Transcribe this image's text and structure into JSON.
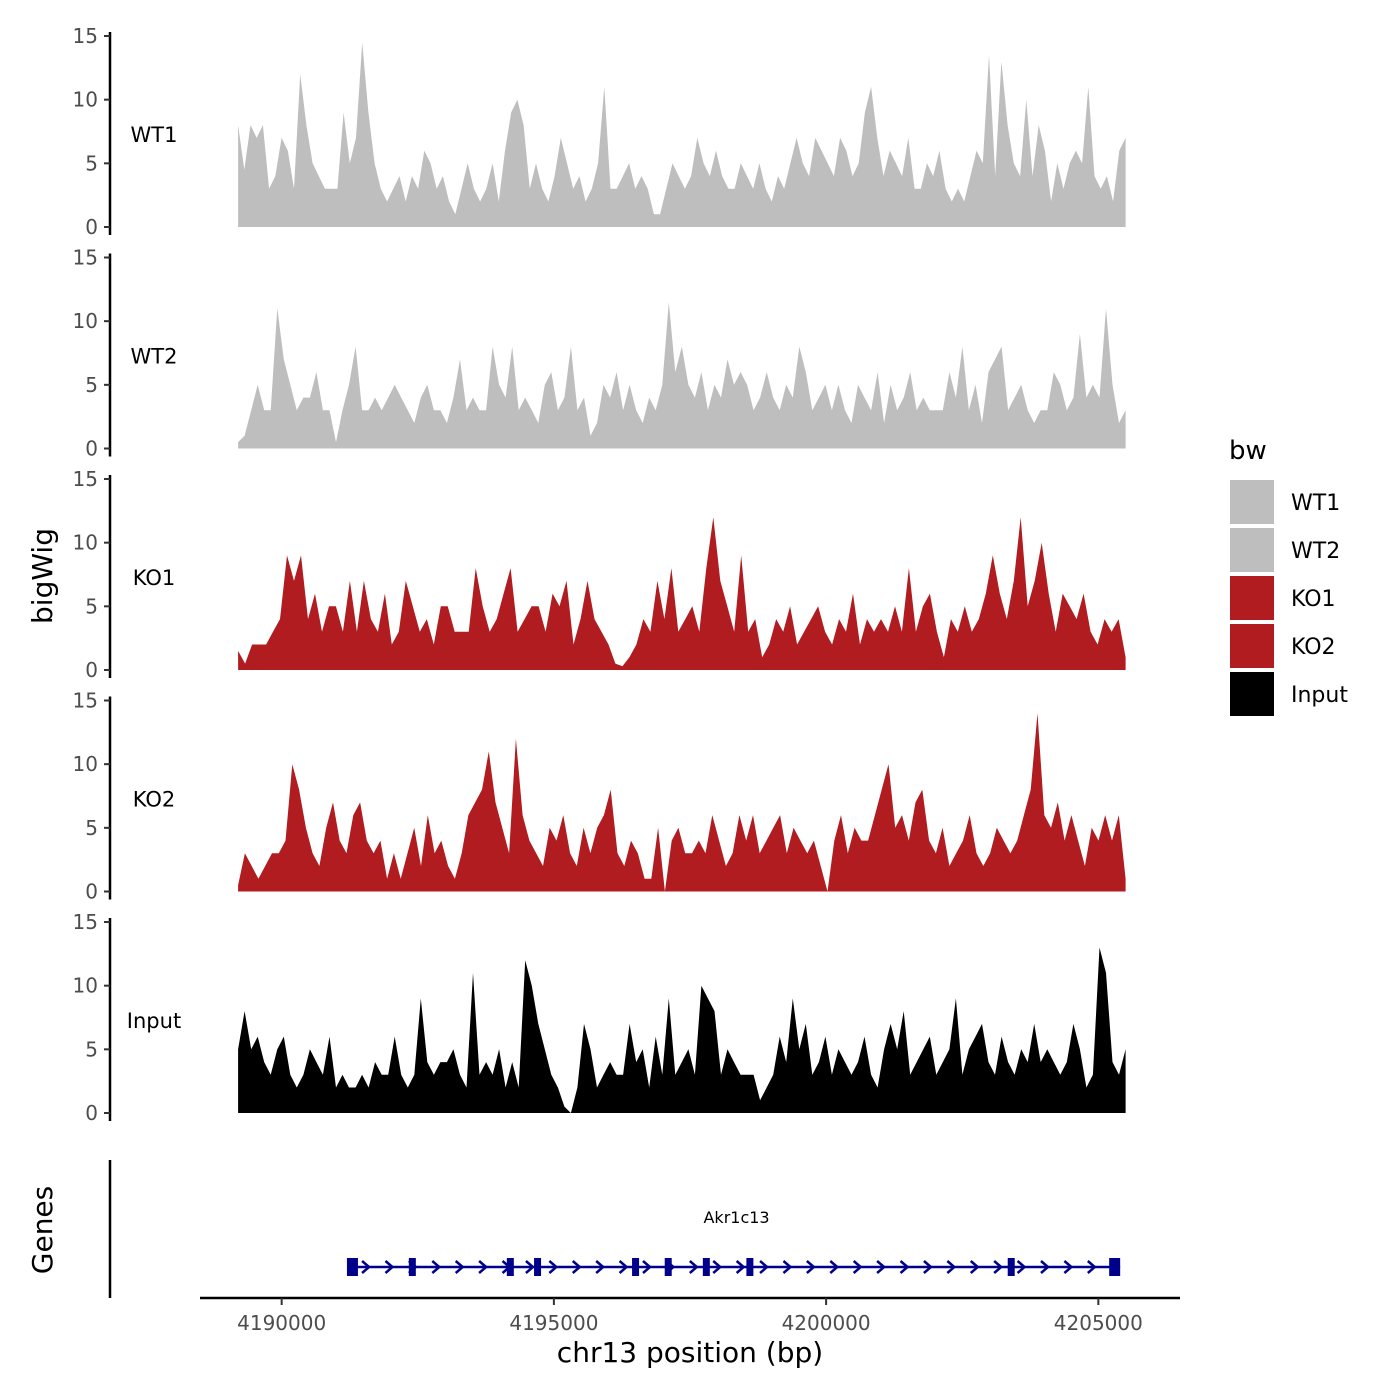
{
  "chart_data": {
    "type": "area",
    "ylabel": "bigWig",
    "xlabel": "chr13 position (bp)",
    "genes_label": "Genes",
    "xlim": [
      4188500,
      4206500
    ],
    "data_xrange": [
      4189200,
      4205500
    ],
    "x_ticks": [
      4190000,
      4195000,
      4200000,
      4205000
    ],
    "x_tick_labels": [
      "4190000",
      "4195000",
      "4200000",
      "4205000"
    ],
    "y_ticks": [
      0,
      5,
      10,
      15
    ],
    "y_tick_labels": [
      "0",
      "5",
      "10",
      "15"
    ],
    "ylim": [
      0,
      15
    ],
    "legend": {
      "title": "bw",
      "entries": [
        {
          "label": "WT1",
          "color": "#bebebe"
        },
        {
          "label": "WT2",
          "color": "#bebebe"
        },
        {
          "label": "KO1",
          "color": "#b01c1f"
        },
        {
          "label": "KO2",
          "color": "#b01c1f"
        },
        {
          "label": "Input",
          "color": "#000000"
        }
      ]
    },
    "series": [
      {
        "name": "WT1",
        "color": "#bebebe",
        "values": [
          8,
          4.5,
          8,
          7,
          8,
          3,
          4,
          7,
          6,
          3,
          12,
          8,
          5,
          4,
          3,
          3,
          3,
          9,
          5,
          7,
          14.5,
          9,
          5,
          3,
          2,
          3,
          4,
          2,
          4,
          3,
          6,
          5,
          3,
          4,
          2,
          1,
          3,
          5,
          3,
          2,
          3,
          5,
          2,
          6,
          9,
          10,
          8,
          3,
          5,
          3,
          2,
          4,
          7,
          5,
          3,
          4,
          2,
          3,
          5,
          11,
          3,
          3,
          4,
          5,
          3,
          4,
          3,
          1,
          1,
          3,
          5,
          4,
          3,
          4,
          7,
          5,
          4,
          6,
          4,
          3,
          3,
          5,
          4,
          3,
          5,
          3,
          2,
          4,
          3,
          5,
          7,
          5,
          4,
          7,
          6,
          5,
          4,
          7,
          6,
          4,
          5,
          9,
          11,
          7,
          4,
          6,
          5,
          4,
          7,
          3,
          3,
          5,
          4,
          6,
          3,
          2,
          3,
          2,
          4,
          6,
          5,
          13.5,
          4,
          13,
          8,
          5,
          4,
          10,
          4,
          8,
          6,
          2,
          5,
          3,
          5,
          6,
          5,
          11,
          4,
          3,
          4,
          2,
          6,
          7
        ]
      },
      {
        "name": "WT2",
        "color": "#bebebe",
        "values": [
          0.5,
          1,
          3,
          5,
          3,
          3,
          11,
          7,
          5,
          3,
          4,
          4,
          6,
          3,
          3,
          0.5,
          3,
          5,
          8,
          3,
          3,
          4,
          3,
          4,
          5,
          4,
          3,
          2,
          4,
          5,
          3,
          3,
          2,
          4,
          7,
          3,
          4,
          3,
          3,
          8,
          5,
          4,
          8,
          3,
          4,
          3,
          2,
          5,
          6,
          3,
          4,
          8,
          3,
          4,
          1,
          2,
          5,
          4,
          6,
          3,
          5,
          3,
          2,
          4,
          3,
          5,
          11.5,
          6,
          8,
          5,
          4,
          6,
          3,
          5,
          4,
          7,
          5,
          6,
          5,
          3,
          4,
          6,
          4,
          3,
          5,
          4,
          8,
          6,
          3,
          4,
          5,
          3,
          5,
          3,
          2,
          5,
          4,
          3,
          6,
          2,
          5,
          3,
          4,
          6,
          3,
          4,
          3,
          3,
          3,
          6,
          4,
          8,
          3,
          5,
          2,
          6,
          7,
          8,
          3,
          4,
          5,
          3,
          2,
          3,
          3,
          6,
          5,
          3,
          4,
          9,
          4,
          5,
          4,
          11,
          5,
          2,
          3
        ]
      },
      {
        "name": "KO1",
        "color": "#b01c1f",
        "values": [
          1.5,
          0.5,
          2,
          2,
          2,
          3,
          4,
          9,
          7,
          9,
          4,
          6,
          3,
          5,
          5,
          3,
          7,
          3,
          7,
          4,
          3,
          6,
          2,
          3,
          7,
          5,
          3,
          4,
          2,
          5,
          5,
          3,
          3,
          3,
          8,
          5,
          3,
          4,
          6,
          8,
          3,
          4,
          5,
          5,
          3,
          6,
          5,
          7,
          2,
          4,
          7,
          4,
          3,
          2,
          0.5,
          0.3,
          1,
          2,
          4,
          3,
          7,
          4,
          8,
          3,
          4,
          5,
          3,
          8,
          12,
          7,
          5,
          3,
          9,
          3,
          4,
          1,
          2,
          4,
          3,
          5,
          2,
          3,
          4,
          5,
          3,
          2,
          4,
          3,
          6,
          2,
          4,
          3,
          4,
          3,
          5,
          3,
          8,
          3,
          5,
          6,
          3,
          1,
          4,
          3,
          5,
          3,
          4,
          6,
          9,
          6,
          4,
          7,
          12,
          5,
          7,
          10,
          6,
          3,
          6,
          5,
          4,
          6,
          3,
          2,
          4,
          3,
          4,
          1
        ]
      },
      {
        "name": "KO2",
        "color": "#b01c1f",
        "values": [
          0.5,
          3,
          2,
          1,
          2,
          3,
          3,
          4,
          10,
          8,
          5,
          3,
          2,
          5,
          7,
          4,
          3,
          6,
          7,
          4,
          3,
          4,
          1,
          3,
          1,
          3,
          5,
          2,
          6,
          3,
          4,
          2,
          1,
          3,
          6,
          7,
          8,
          11,
          7,
          5,
          3,
          12,
          6,
          4,
          3,
          2,
          5,
          4,
          6,
          3,
          2,
          5,
          3,
          5,
          6,
          8,
          3,
          2,
          4,
          3,
          1,
          1,
          5,
          0,
          4,
          5,
          3,
          3,
          4,
          3,
          6,
          4,
          2,
          3,
          6,
          4,
          6,
          3,
          4,
          5,
          6,
          3,
          5,
          4,
          3,
          4,
          2,
          0,
          4,
          6,
          3,
          5,
          4,
          4,
          6,
          8,
          10,
          5,
          6,
          4,
          7,
          8,
          4,
          3,
          5,
          2,
          3,
          4,
          6,
          3,
          2,
          3,
          5,
          4,
          3,
          4,
          6,
          8,
          14,
          6,
          5,
          7,
          4,
          6,
          4,
          2,
          5,
          4,
          6,
          4,
          6,
          1
        ]
      },
      {
        "name": "Input",
        "color": "#000000",
        "values": [
          5,
          8,
          5,
          6,
          4,
          3,
          5,
          6,
          3,
          2,
          3,
          5,
          4,
          3,
          6,
          2,
          3,
          2,
          2,
          3,
          2,
          4,
          3,
          3,
          6,
          3,
          2,
          3,
          9,
          4,
          3,
          4,
          4,
          5,
          3,
          2,
          11,
          3,
          4,
          3,
          5,
          2,
          4,
          2,
          12,
          10,
          7,
          5,
          3,
          2,
          0.5,
          0,
          2,
          7,
          5,
          2,
          3,
          4,
          3,
          3,
          7,
          4,
          5,
          2,
          6,
          3,
          9,
          3,
          4,
          5,
          3,
          10,
          9,
          8,
          3,
          5,
          4,
          3,
          3,
          3,
          1,
          2,
          3,
          6,
          4,
          9,
          5,
          7,
          3,
          4,
          6,
          3,
          5,
          4,
          3,
          4,
          6,
          3,
          2,
          5,
          7,
          5,
          8,
          3,
          4,
          5,
          6,
          3,
          4,
          5,
          9,
          3,
          5,
          6,
          7,
          4,
          3,
          6,
          4,
          3,
          5,
          4,
          7,
          4,
          5,
          4,
          3,
          4,
          7,
          5,
          2,
          3,
          13,
          11,
          4,
          3,
          5
        ]
      }
    ],
    "gene": {
      "name": "Akr1c13",
      "strand": "+",
      "start": 4191200,
      "end": 4205400,
      "exons": [
        4191300,
        4192400,
        4194200,
        4194700,
        4196500,
        4197100,
        4197800,
        4198600,
        4203400,
        4205300
      ]
    }
  }
}
